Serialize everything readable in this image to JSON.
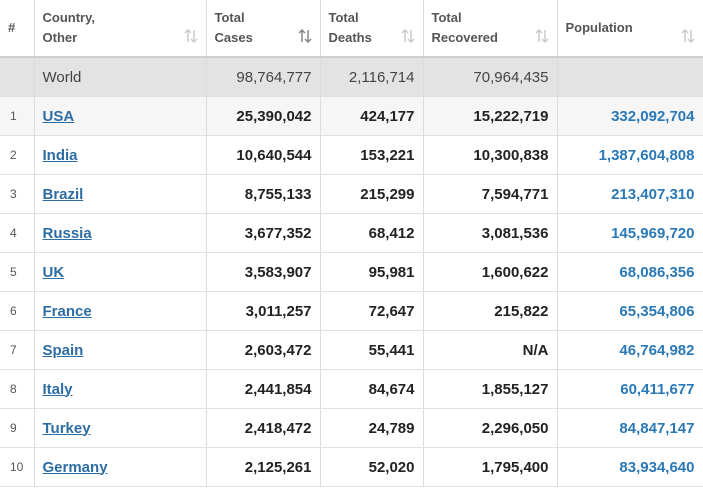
{
  "table": {
    "header": [
      [
        "#"
      ],
      [
        "Country,",
        "Other"
      ],
      [
        "Total",
        "Cases"
      ],
      [
        "Total",
        "Deaths"
      ],
      [
        "Total",
        "Recovered"
      ],
      [
        "Population"
      ]
    ],
    "world": [
      "World",
      "98,764,777",
      "2,116,714",
      "70,964,435"
    ],
    "rows": [
      [
        "1",
        "USA",
        "25,390,042",
        "424,177",
        "15,222,719",
        "332,092,704"
      ],
      [
        "2",
        "India",
        "10,640,544",
        "153,221",
        "10,300,838",
        "1,387,604,808"
      ],
      [
        "3",
        "Brazil",
        "8,755,133",
        "215,299",
        "7,594,771",
        "213,407,310"
      ],
      [
        "4",
        "Russia",
        "3,677,352",
        "68,412",
        "3,081,536",
        "145,969,720"
      ],
      [
        "5",
        "UK",
        "3,583,907",
        "95,981",
        "1,600,622",
        "68,086,356"
      ],
      [
        "6",
        "France",
        "3,011,257",
        "72,647",
        "215,822",
        "65,354,806"
      ],
      [
        "7",
        "Spain",
        "2,603,472",
        "55,441",
        "N/A",
        "46,764,982"
      ],
      [
        "8",
        "Italy",
        "2,441,854",
        "84,674",
        "1,855,127",
        "60,411,677"
      ],
      [
        "9",
        "Turkey",
        "2,418,472",
        "24,789",
        "2,296,050",
        "84,847,147"
      ],
      [
        "10",
        "Germany",
        "2,125,261",
        "52,020",
        "1,795,400",
        "83,934,640"
      ]
    ]
  }
}
